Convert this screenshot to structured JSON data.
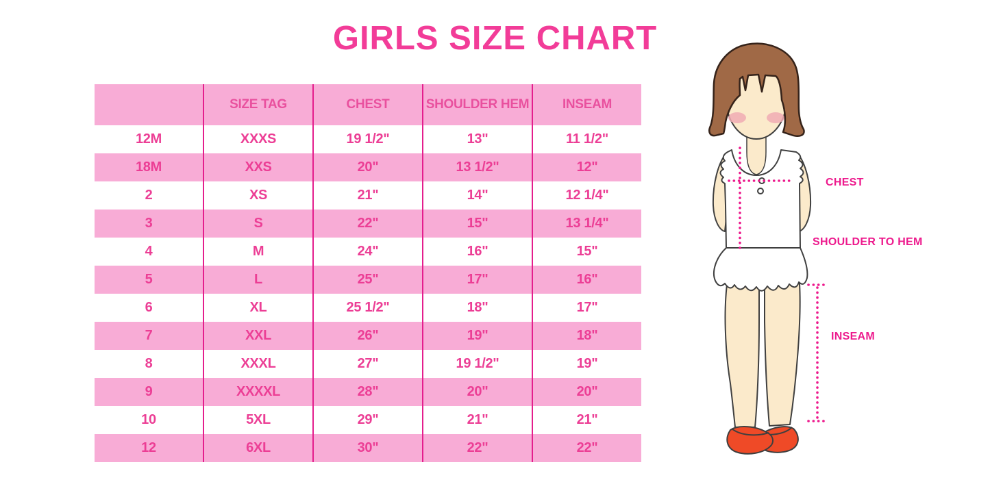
{
  "title": "GIRLS SIZE CHART",
  "colors": {
    "title_pink": "#F23C98",
    "table_text": "#EC3E95",
    "header_text": "#E9509E",
    "row_pink": "#F8ACD6",
    "line": "#E41E8D",
    "dotted": "#ED1A8D",
    "hair": "#A06946",
    "hair_line": "#35231A",
    "skin": "#FBEACB",
    "outline": "#3F3F3F",
    "blush": "#F0ACB4",
    "shoe": "#EF4A27"
  },
  "table": {
    "columns": [
      "",
      "SIZE TAG",
      "CHEST",
      "SHOULDER HEM",
      "INSEAM"
    ],
    "rows": [
      [
        "12M",
        "XXXS",
        "19 1/2\"",
        "13\"",
        "11 1/2\""
      ],
      [
        "18M",
        "XXS",
        "20\"",
        "13 1/2\"",
        "12\""
      ],
      [
        "2",
        "XS",
        "21\"",
        "14\"",
        "12 1/4\""
      ],
      [
        "3",
        "S",
        "22\"",
        "15\"",
        "13 1/4\""
      ],
      [
        "4",
        "M",
        "24\"",
        "16\"",
        "15\""
      ],
      [
        "5",
        "L",
        "25\"",
        "17\"",
        "16\""
      ],
      [
        "6",
        "XL",
        "25 1/2\"",
        "18\"",
        "17\""
      ],
      [
        "7",
        "XXL",
        "26\"",
        "19\"",
        "18\""
      ],
      [
        "8",
        "XXXL",
        "27\"",
        "19 1/2\"",
        "19\""
      ],
      [
        "9",
        "XXXXL",
        "28\"",
        "20\"",
        "20\""
      ],
      [
        "10",
        "5XL",
        "29\"",
        "21\"",
        "21\""
      ],
      [
        "12",
        "6XL",
        "30\"",
        "22\"",
        "22\""
      ]
    ]
  },
  "figure": {
    "labels": {
      "chest": "CHEST",
      "shoulder_to_hem": "SHOULDER TO HEM",
      "inseam": "INSEAM"
    }
  }
}
